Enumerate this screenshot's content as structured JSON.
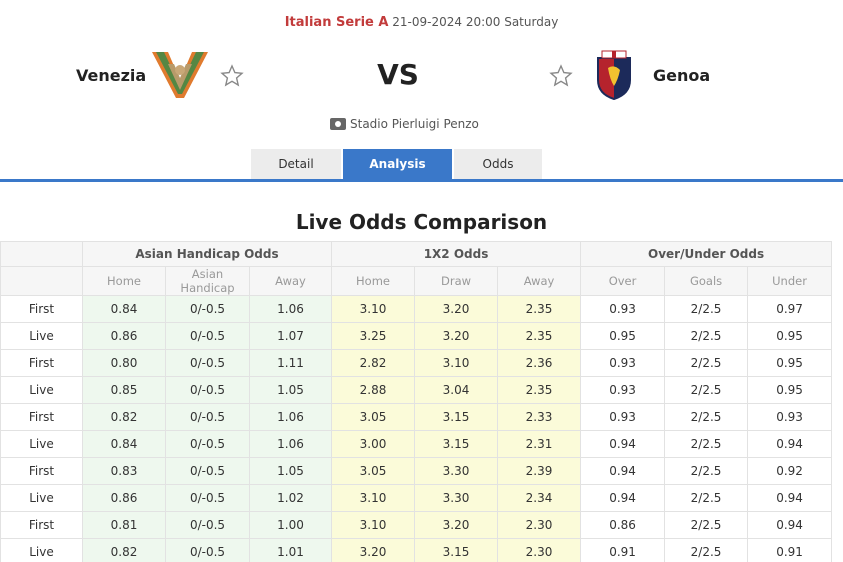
{
  "match": {
    "league": "Italian Serie A",
    "datetime": "21-09-2024 20:00 Saturday",
    "home_team": "Venezia",
    "away_team": "Genoa",
    "vs": "VS",
    "venue": "Stadio Pierluigi Penzo"
  },
  "tabs": [
    {
      "label": "Detail",
      "active": false
    },
    {
      "label": "Analysis",
      "active": true
    },
    {
      "label": "Odds",
      "active": false
    }
  ],
  "section_title": "Live Odds Comparison",
  "table": {
    "groups": {
      "asian_handicap": "Asian Handicap Odds",
      "one_x_two": "1X2 Odds",
      "over_under": "Over/Under Odds"
    },
    "subheaders": [
      "Home",
      "Asian Handicap",
      "Away",
      "Home",
      "Draw",
      "Away",
      "Over",
      "Goals",
      "Under"
    ],
    "rows": [
      {
        "type": "First",
        "ah_home": "0.84",
        "ah_line": "0/-0.5",
        "ah_away": "1.06",
        "home": "3.10",
        "draw": "3.20",
        "away": "2.35",
        "over": "0.93",
        "goals": "2/2.5",
        "under": "0.97"
      },
      {
        "type": "Live",
        "ah_home": "0.86",
        "ah_line": "0/-0.5",
        "ah_away": "1.07",
        "home": "3.25",
        "draw": "3.20",
        "away": "2.35",
        "over": "0.95",
        "goals": "2/2.5",
        "under": "0.95"
      },
      {
        "type": "First",
        "ah_home": "0.80",
        "ah_line": "0/-0.5",
        "ah_away": "1.11",
        "home": "2.82",
        "draw": "3.10",
        "away": "2.36",
        "over": "0.93",
        "goals": "2/2.5",
        "under": "0.95"
      },
      {
        "type": "Live",
        "ah_home": "0.85",
        "ah_line": "0/-0.5",
        "ah_away": "1.05",
        "home": "2.88",
        "draw": "3.04",
        "away": "2.35",
        "over": "0.93",
        "goals": "2/2.5",
        "under": "0.95"
      },
      {
        "type": "First",
        "ah_home": "0.82",
        "ah_line": "0/-0.5",
        "ah_away": "1.06",
        "home": "3.05",
        "draw": "3.15",
        "away": "2.33",
        "over": "0.93",
        "goals": "2/2.5",
        "under": "0.93"
      },
      {
        "type": "Live",
        "ah_home": "0.84",
        "ah_line": "0/-0.5",
        "ah_away": "1.06",
        "home": "3.00",
        "draw": "3.15",
        "away": "2.31",
        "over": "0.94",
        "goals": "2/2.5",
        "under": "0.94"
      },
      {
        "type": "First",
        "ah_home": "0.83",
        "ah_line": "0/-0.5",
        "ah_away": "1.05",
        "home": "3.05",
        "draw": "3.30",
        "away": "2.39",
        "over": "0.94",
        "goals": "2/2.5",
        "under": "0.92"
      },
      {
        "type": "Live",
        "ah_home": "0.86",
        "ah_line": "0/-0.5",
        "ah_away": "1.02",
        "home": "3.10",
        "draw": "3.30",
        "away": "2.34",
        "over": "0.94",
        "goals": "2/2.5",
        "under": "0.94"
      },
      {
        "type": "First",
        "ah_home": "0.81",
        "ah_line": "0/-0.5",
        "ah_away": "1.00",
        "home": "3.10",
        "draw": "3.20",
        "away": "2.30",
        "over": "0.86",
        "goals": "2/2.5",
        "under": "0.94"
      },
      {
        "type": "Live",
        "ah_home": "0.82",
        "ah_line": "0/-0.5",
        "ah_away": "1.01",
        "home": "3.20",
        "draw": "3.15",
        "away": "2.30",
        "over": "0.91",
        "goals": "2/2.5",
        "under": "0.91"
      }
    ]
  },
  "colors": {
    "league": "#c23b3b",
    "accent": "#3a78c9",
    "asian_bg": "#eef8ee",
    "one_x_two_bg": "#fbfbd9"
  },
  "icons": {
    "home_logo": "venezia-crest-icon",
    "away_logo": "genoa-crest-icon",
    "favorite": "star-outline-icon",
    "venue": "stadium-icon"
  }
}
